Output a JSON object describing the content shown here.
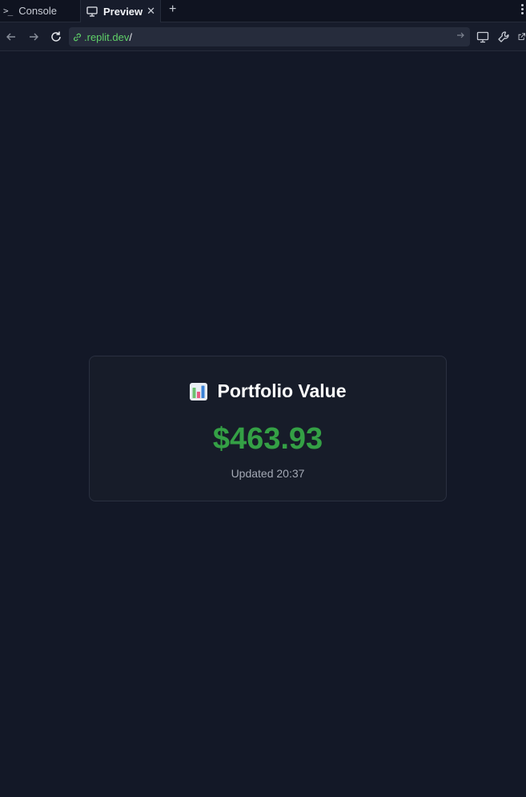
{
  "tabs": {
    "console_label": "Console",
    "preview_label": "Preview"
  },
  "address": {
    "host": ".replit.dev",
    "path": "/"
  },
  "card": {
    "title": "Portfolio Value",
    "value": "$463.93",
    "updated": "Updated 20:37",
    "value_color": "#34a045"
  },
  "icons": [
    "terminal-icon",
    "monitor-icon",
    "close-icon",
    "plus-icon",
    "more-vertical-icon",
    "back-arrow-icon",
    "forward-arrow-icon",
    "reload-icon",
    "link-icon",
    "go-arrow-icon",
    "devices-icon",
    "wrench-icon",
    "open-external-icon",
    "bar-chart-icon"
  ]
}
